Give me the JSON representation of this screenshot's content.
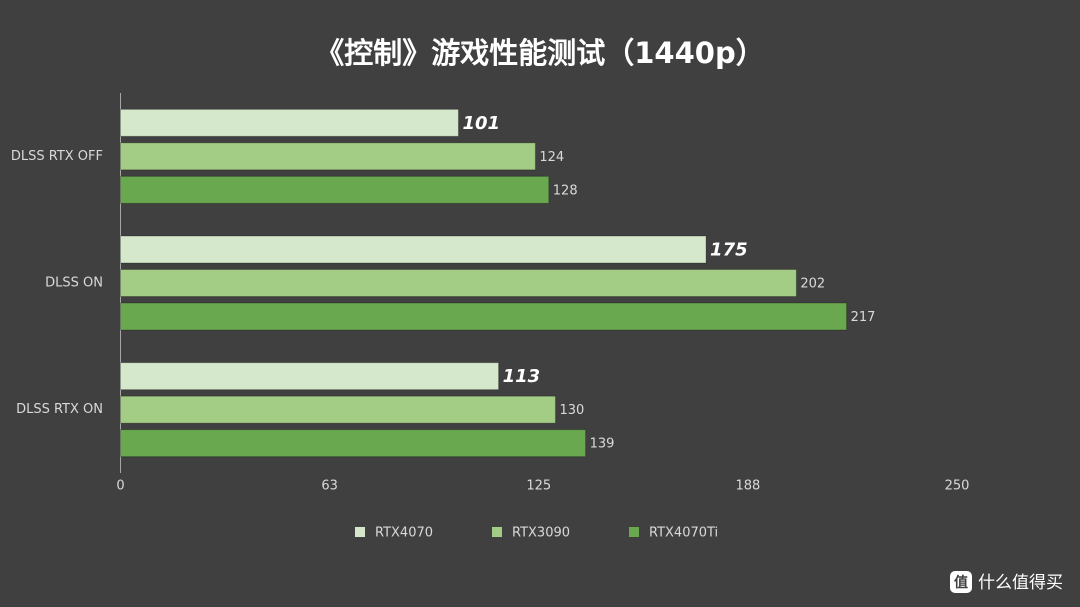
{
  "chart_data": {
    "type": "bar",
    "orientation": "horizontal",
    "title": "《控制》游戏性能测试（1440p）",
    "categories": [
      "DLSS RTX OFF",
      "DLSS ON",
      "DLSS RTX ON"
    ],
    "series": [
      {
        "name": "RTX4070",
        "color": "#d5e8cc",
        "values": [
          101,
          175,
          113
        ]
      },
      {
        "name": "RTX3090",
        "color": "#a3cc85",
        "values": [
          124,
          202,
          130
        ]
      },
      {
        "name": "RTX4070Ti",
        "color": "#6aa84f",
        "values": [
          128,
          217,
          139
        ]
      }
    ],
    "xlim": [
      0,
      250
    ],
    "xticks": [
      0,
      {
        "value": 62.5,
        "label": "63"
      },
      125,
      {
        "value": 187.5,
        "label": "188"
      },
      250
    ],
    "grid": false,
    "legend": "bottom"
  },
  "watermark": "什么值得买"
}
